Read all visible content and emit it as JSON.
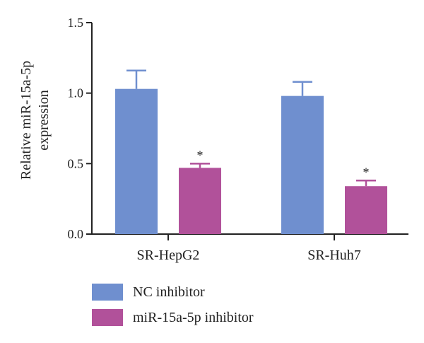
{
  "chart_data": {
    "type": "bar",
    "categories": [
      "SR-HepG2",
      "SR-Huh7"
    ],
    "series": [
      {
        "name": "NC inhibitor",
        "color": "#6f8fcf",
        "values": [
          1.03,
          0.98
        ],
        "errors": [
          0.13,
          0.1
        ],
        "annotations": [
          "",
          ""
        ]
      },
      {
        "name": "miR-15a-5p inhibitor",
        "color": "#b1519a",
        "values": [
          0.47,
          0.34
        ],
        "errors": [
          0.03,
          0.04
        ],
        "annotations": [
          "*",
          "*"
        ]
      }
    ],
    "ylabel": [
      "Relative miR-15a-5p",
      "expression"
    ],
    "ylim": [
      0,
      1.5
    ],
    "yticks": [
      "0.0",
      "0.5",
      "1.0",
      "1.5"
    ],
    "grid": false,
    "legend_position": "bottom-left"
  }
}
